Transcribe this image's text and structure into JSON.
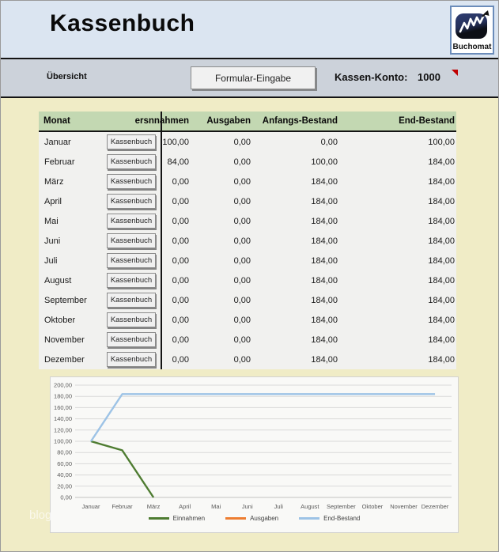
{
  "window": {
    "watermark": "blog"
  },
  "header": {
    "title": "Kassenbuch",
    "logo_text": "Buchomat"
  },
  "toolbar": {
    "left_label": "Übersicht",
    "button_label": "Formular-Eingabe",
    "account_label": "Kassen-Konto:",
    "account_value": "1000"
  },
  "table": {
    "columns": [
      "Monat",
      "ersnnahmen",
      "Ausgaben",
      "Anfangs-Bestand",
      "End-Bestand"
    ],
    "row_button_label": "Kassenbuch",
    "rows": [
      {
        "month": "Januar",
        "einnahmen": "100,00",
        "ausgaben": "0,00",
        "anfang": "0,00",
        "ende": "100,00"
      },
      {
        "month": "Februar",
        "einnahmen": "84,00",
        "ausgaben": "0,00",
        "anfang": "100,00",
        "ende": "184,00"
      },
      {
        "month": "März",
        "einnahmen": "0,00",
        "ausgaben": "0,00",
        "anfang": "184,00",
        "ende": "184,00"
      },
      {
        "month": "April",
        "einnahmen": "0,00",
        "ausgaben": "0,00",
        "anfang": "184,00",
        "ende": "184,00"
      },
      {
        "month": "Mai",
        "einnahmen": "0,00",
        "ausgaben": "0,00",
        "anfang": "184,00",
        "ende": "184,00"
      },
      {
        "month": "Juni",
        "einnahmen": "0,00",
        "ausgaben": "0,00",
        "anfang": "184,00",
        "ende": "184,00"
      },
      {
        "month": "Juli",
        "einnahmen": "0,00",
        "ausgaben": "0,00",
        "anfang": "184,00",
        "ende": "184,00"
      },
      {
        "month": "August",
        "einnahmen": "0,00",
        "ausgaben": "0,00",
        "anfang": "184,00",
        "ende": "184,00"
      },
      {
        "month": "September",
        "einnahmen": "0,00",
        "ausgaben": "0,00",
        "anfang": "184,00",
        "ende": "184,00"
      },
      {
        "month": "Oktober",
        "einnahmen": "0,00",
        "ausgaben": "0,00",
        "anfang": "184,00",
        "ende": "184,00"
      },
      {
        "month": "November",
        "einnahmen": "0,00",
        "ausgaben": "0,00",
        "anfang": "184,00",
        "ende": "184,00"
      },
      {
        "month": "Dezember",
        "einnahmen": "0,00",
        "ausgaben": "0,00",
        "anfang": "184,00",
        "ende": "184,00"
      }
    ]
  },
  "chart_data": {
    "type": "line",
    "categories": [
      "Januar",
      "Februar",
      "März",
      "April",
      "Mai",
      "Juni",
      "Juli",
      "August",
      "September",
      "Oktober",
      "November",
      "Dezember"
    ],
    "series": [
      {
        "name": "Einnahmen",
        "color": "#4e7c31",
        "values": [
          100,
          84,
          0,
          null,
          null,
          null,
          null,
          null,
          null,
          null,
          null,
          null
        ]
      },
      {
        "name": "Ausgaben",
        "color": "#ed7d31",
        "values": [
          0,
          0,
          0,
          0,
          0,
          0,
          0,
          0,
          0,
          0,
          0,
          0
        ],
        "hidden": true
      },
      {
        "name": "End-Bestand",
        "color": "#9dc3e6",
        "values": [
          100,
          184,
          184,
          184,
          184,
          184,
          184,
          184,
          184,
          184,
          184,
          184
        ]
      }
    ],
    "ylim": [
      0,
      200
    ],
    "ytick_step": 20,
    "ytick_labels": [
      "0,00",
      "20,00",
      "40,00",
      "60,00",
      "80,00",
      "100,00",
      "120,00",
      "140,00",
      "160,00",
      "180,00",
      "200,00"
    ],
    "grid": true,
    "legend_position": "bottom",
    "colors": {
      "grid": "#d9d9d9",
      "axis_text": "#595959"
    }
  }
}
